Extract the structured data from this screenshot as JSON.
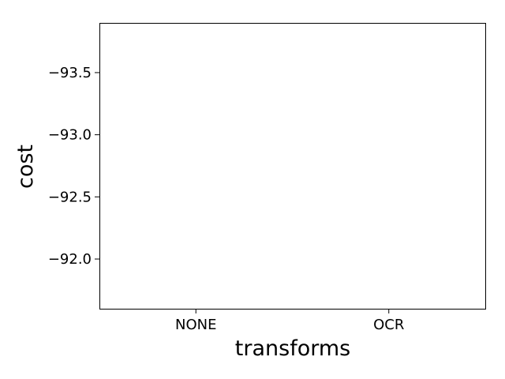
{
  "chart_data": {
    "type": "bar",
    "categories": [
      "NONE",
      "OCR"
    ],
    "category_colors": [
      "#000000",
      "#ff0000"
    ],
    "values": [
      null,
      null
    ],
    "xlabel": "transforms",
    "ylabel": "cost",
    "ylim": [
      -91.6,
      -93.9
    ],
    "y_inverted": true,
    "yticks": [
      -93.5,
      -93.0,
      -92.5,
      -92.0
    ],
    "ytick_labels": [
      "−93.5",
      "−93.0",
      "−92.5",
      "−92.0"
    ],
    "grid": false,
    "legend": "none"
  }
}
